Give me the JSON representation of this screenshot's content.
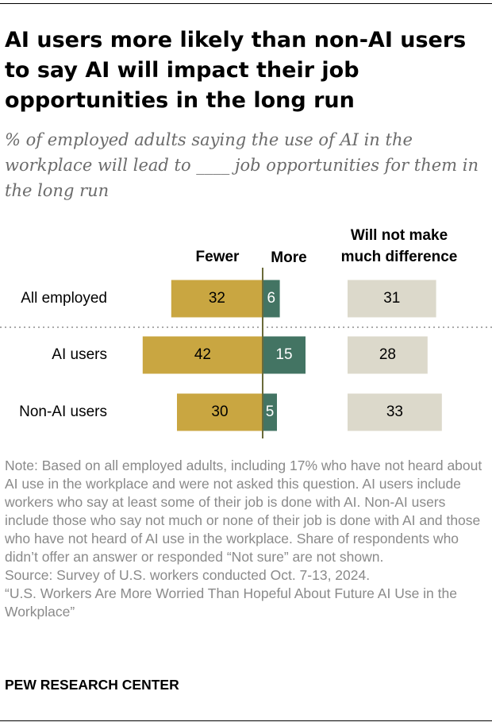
{
  "title": "AI users more likely than non-AI users to say AI will impact their job opportunities in the long run",
  "subtitle": "% of employed adults saying the use of AI in the workplace will lead to ____ job opportunities for them in the long run",
  "chart_data": {
    "type": "bar",
    "orientation": "horizontal",
    "categories": [
      "All employed",
      "AI users",
      "Non-AI users"
    ],
    "series": [
      {
        "name": "Fewer",
        "values": [
          32,
          42,
          30
        ],
        "color": "#c9a641"
      },
      {
        "name": "More",
        "values": [
          6,
          15,
          5
        ],
        "color": "#437463"
      },
      {
        "name": "Will not make much difference",
        "values": [
          31,
          28,
          33
        ],
        "color": "#dcd9cb"
      }
    ],
    "column_headers": {
      "fewer": "Fewer",
      "more": "More",
      "no_difference_line1": "Will not make",
      "no_difference_line2": "much difference"
    },
    "colors": {
      "fewer": "#c9a641",
      "more": "#437463",
      "no_difference": "#dcd9cb",
      "axis": "#6b6b3a",
      "divider": "#aaaaaa"
    }
  },
  "notes": [
    "Note: Based on all employed adults, including 17% who have not heard about AI use in the workplace and were not asked this question. AI users include workers who say at least some of their job is done with AI. Non-AI users include those who say not much or none of their job is done with AI and those who have not heard of AI use in the workplace. Share of respondents who didn’t offer an answer or responded “Not sure” are not shown.",
    "Source: Survey of U.S. workers conducted Oct. 7-13, 2024.",
    "“U.S. Workers Are More Worried Than Hopeful About Future AI Use in the Workplace”"
  ],
  "brand": "PEW RESEARCH CENTER"
}
